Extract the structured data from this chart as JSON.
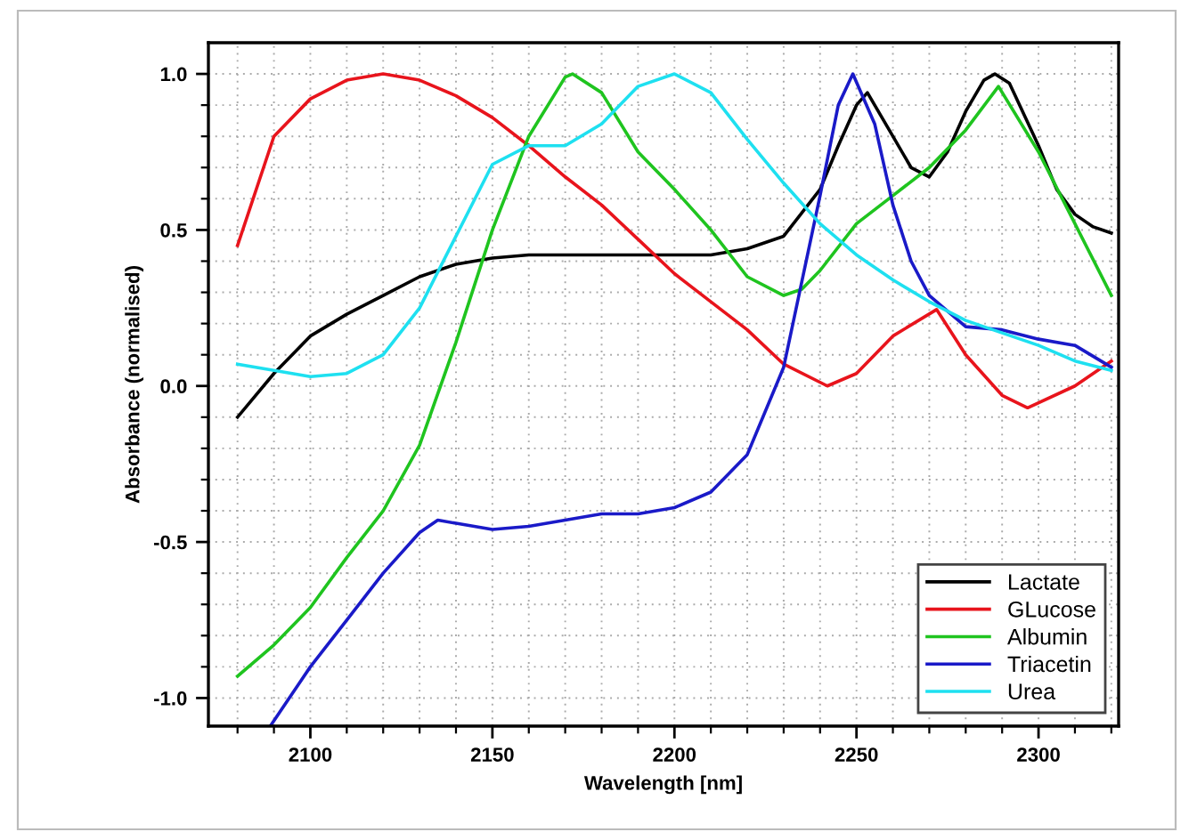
{
  "chart_data": {
    "type": "line",
    "xlabel": "Wavelength [nm]",
    "ylabel": "Absorbance (normalised)",
    "xlim": [
      2072,
      2322
    ],
    "ylim": [
      -1.09,
      1.1
    ],
    "xticks": [
      {
        "value": 2080,
        "label": null
      },
      {
        "value": 2090,
        "label": null
      },
      2100,
      {
        "value": 2110,
        "label": null
      },
      {
        "value": 2120,
        "label": null
      },
      {
        "value": 2130,
        "label": null
      },
      {
        "value": 2140,
        "label": null
      },
      2150,
      {
        "value": 2160,
        "label": null
      },
      {
        "value": 2170,
        "label": null
      },
      {
        "value": 2180,
        "label": null
      },
      {
        "value": 2190,
        "label": null
      },
      2200,
      {
        "value": 2210,
        "label": null
      },
      {
        "value": 2220,
        "label": null
      },
      {
        "value": 2230,
        "label": null
      },
      {
        "value": 2240,
        "label": null
      },
      2250,
      {
        "value": 2260,
        "label": null
      },
      {
        "value": 2270,
        "label": null
      },
      {
        "value": 2280,
        "label": null
      },
      {
        "value": 2290,
        "label": null
      },
      2300,
      {
        "value": 2310,
        "label": null
      },
      {
        "value": 2320,
        "label": null
      }
    ],
    "yticks": [
      {
        "value": -1.0,
        "label": "-1.0"
      },
      {
        "value": -0.9,
        "label": null
      },
      {
        "value": -0.8,
        "label": null
      },
      {
        "value": -0.7,
        "label": null
      },
      {
        "value": -0.6,
        "label": null
      },
      {
        "value": -0.5,
        "label": "-0.5"
      },
      {
        "value": -0.4,
        "label": null
      },
      {
        "value": -0.3,
        "label": null
      },
      {
        "value": -0.2,
        "label": null
      },
      {
        "value": -0.1,
        "label": null
      },
      {
        "value": 0.0,
        "label": "0.0"
      },
      {
        "value": 0.1,
        "label": null
      },
      {
        "value": 0.2,
        "label": null
      },
      {
        "value": 0.3,
        "label": null
      },
      {
        "value": 0.4,
        "label": null
      },
      {
        "value": 0.5,
        "label": "0.5"
      },
      {
        "value": 0.6,
        "label": null
      },
      {
        "value": 0.7,
        "label": null
      },
      {
        "value": 0.8,
        "label": null
      },
      {
        "value": 0.9,
        "label": null
      },
      {
        "value": 1.0,
        "label": "1.0"
      }
    ],
    "grid": true,
    "legend": "bottom right",
    "marker": "none",
    "line_style": "solid",
    "series": [
      {
        "name": "Lactate",
        "color": "#000000",
        "x": [
          2080,
          2090,
          2100,
          2110,
          2120,
          2130,
          2140,
          2150,
          2160,
          2170,
          2180,
          2190,
          2200,
          2210,
          2220,
          2230,
          2240,
          2245,
          2250,
          2253,
          2260,
          2265,
          2270,
          2275,
          2280,
          2285,
          2288,
          2292,
          2300,
          2305,
          2310,
          2315,
          2320
        ],
        "values": [
          -0.1,
          0.04,
          0.16,
          0.23,
          0.29,
          0.35,
          0.39,
          0.41,
          0.42,
          0.42,
          0.42,
          0.42,
          0.42,
          0.42,
          0.44,
          0.48,
          0.63,
          0.77,
          0.9,
          0.94,
          0.8,
          0.7,
          0.67,
          0.75,
          0.88,
          0.98,
          1.0,
          0.97,
          0.77,
          0.63,
          0.55,
          0.51,
          0.49
        ]
      },
      {
        "name": "GLucose",
        "color": "#e8141c",
        "x": [
          2080,
          2090,
          2100,
          2110,
          2120,
          2130,
          2140,
          2150,
          2160,
          2170,
          2180,
          2190,
          2200,
          2210,
          2220,
          2230,
          2242,
          2250,
          2260,
          2272,
          2280,
          2290,
          2297,
          2310,
          2320
        ],
        "values": [
          0.45,
          0.8,
          0.92,
          0.98,
          1.0,
          0.98,
          0.93,
          0.86,
          0.77,
          0.67,
          0.58,
          0.47,
          0.36,
          0.27,
          0.18,
          0.07,
          0.0,
          0.04,
          0.16,
          0.245,
          0.1,
          -0.03,
          -0.07,
          0.0,
          0.08
        ]
      },
      {
        "name": "Albumin",
        "color": "#1fc41f",
        "x": [
          2080,
          2090,
          2100,
          2110,
          2120,
          2130,
          2140,
          2150,
          2160,
          2170,
          2172,
          2180,
          2190,
          2200,
          2210,
          2220,
          2230,
          2235,
          2240,
          2250,
          2260,
          2270,
          2280,
          2289,
          2300,
          2310,
          2320
        ],
        "values": [
          -0.93,
          -0.83,
          -0.71,
          -0.55,
          -0.4,
          -0.19,
          0.14,
          0.5,
          0.8,
          0.99,
          1.0,
          0.94,
          0.75,
          0.63,
          0.5,
          0.35,
          0.29,
          0.31,
          0.37,
          0.52,
          0.61,
          0.7,
          0.82,
          0.96,
          0.75,
          0.52,
          0.29
        ]
      },
      {
        "name": "Triacetin",
        "color": "#1a1ac8",
        "x": [
          2089,
          2100,
          2110,
          2120,
          2130,
          2135,
          2140,
          2150,
          2160,
          2170,
          2180,
          2190,
          2200,
          2210,
          2220,
          2230,
          2240,
          2245,
          2249,
          2255,
          2260,
          2265,
          2270,
          2280,
          2290,
          2300,
          2310,
          2320
        ],
        "values": [
          -1.09,
          -0.9,
          -0.75,
          -0.6,
          -0.47,
          -0.43,
          -0.44,
          -0.46,
          -0.45,
          -0.43,
          -0.41,
          -0.41,
          -0.39,
          -0.34,
          -0.22,
          0.06,
          0.61,
          0.9,
          1.0,
          0.84,
          0.58,
          0.4,
          0.29,
          0.19,
          0.18,
          0.15,
          0.13,
          0.06
        ]
      },
      {
        "name": "Urea",
        "color": "#1ee0f0",
        "x": [
          2080,
          2090,
          2100,
          2110,
          2120,
          2130,
          2140,
          2150,
          2160,
          2170,
          2180,
          2190,
          2200,
          2210,
          2220,
          2230,
          2240,
          2250,
          2260,
          2270,
          2280,
          2290,
          2300,
          2310,
          2320
        ],
        "values": [
          0.07,
          0.05,
          0.03,
          0.04,
          0.1,
          0.25,
          0.48,
          0.71,
          0.77,
          0.77,
          0.84,
          0.96,
          1.0,
          0.94,
          0.79,
          0.65,
          0.52,
          0.42,
          0.34,
          0.27,
          0.21,
          0.17,
          0.13,
          0.08,
          0.05
        ]
      }
    ]
  }
}
